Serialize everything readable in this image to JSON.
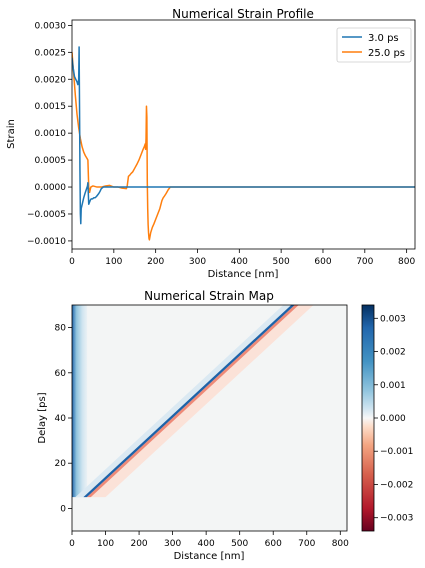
{
  "chart_data": [
    {
      "type": "line",
      "title": "Numerical Strain Profile",
      "xlabel": "Distance [nm]",
      "ylabel": "Strain",
      "xlim": [
        0,
        820
      ],
      "ylim": [
        -0.00115,
        0.0031
      ],
      "xticks": [
        0,
        100,
        200,
        300,
        400,
        500,
        600,
        700,
        800
      ],
      "yticks": [
        -0.001,
        -0.0005,
        0.0,
        0.0005,
        0.001,
        0.0015,
        0.002,
        0.0025,
        0.003
      ],
      "ytick_labels": [
        "−0.0010",
        "−0.0005",
        "0.0000",
        "0.0005",
        "0.0010",
        "0.0015",
        "0.0020",
        "0.0025",
        "0.0030"
      ],
      "legend_position": "top-right",
      "series": [
        {
          "name": "3.0 ps",
          "color": "#1f77b4",
          "x": [
            0,
            3,
            6,
            9,
            12,
            14,
            16,
            17,
            18,
            19,
            20,
            21,
            22,
            25,
            28,
            31,
            34,
            37,
            38,
            40,
            42,
            44,
            46,
            49,
            52,
            55,
            58,
            61,
            64,
            67,
            70,
            75,
            820
          ],
          "y": [
            0.0024,
            0.0022,
            0.00205,
            0.002,
            0.00195,
            0.0019,
            0.002,
            0.0026,
            0.0015,
            0.0003,
            -0.0005,
            -0.00068,
            -0.0004,
            -0.0003,
            -0.0002,
            -0.00012,
            -5e-05,
            2e-05,
            8e-05,
            -0.00032,
            -0.00028,
            -0.00024,
            -0.00022,
            -0.00022,
            -0.0002,
            -0.0002,
            -0.00018,
            -0.00015,
            -0.00012,
            -8e-05,
            -3e-05,
            0.0,
            0.0
          ]
        },
        {
          "name": "25.0 ps",
          "color": "#ff7f0e",
          "x": [
            0,
            4,
            8,
            12,
            16,
            20,
            24,
            28,
            32,
            36,
            38,
            40,
            42,
            45,
            50,
            60,
            70,
            80,
            90,
            100,
            110,
            120,
            130,
            132,
            135,
            138,
            141,
            145,
            150,
            155,
            160,
            165,
            170,
            173,
            175,
            176,
            177,
            178,
            179,
            180,
            181,
            182,
            183,
            184,
            185,
            188,
            192,
            196,
            200,
            205,
            210,
            215,
            218,
            220,
            225,
            230,
            235,
            240,
            820
          ],
          "y": [
            0.0025,
            0.0021,
            0.0017,
            0.00135,
            0.0011,
            0.0009,
            0.00075,
            0.00065,
            0.00058,
            0.00053,
            0.0005,
            0.0,
            -0.0001,
            0.0,
            2e-05,
            0.0,
            0.0,
            2e-05,
            3e-05,
            0.0,
            0.0,
            -2e-05,
            -3e-05,
            2e-05,
            0.0002,
            0.00022,
            0.00025,
            0.00028,
            0.00035,
            0.00042,
            0.0005,
            0.0006,
            0.0007,
            0.00075,
            0.0008,
            0.0007,
            0.0009,
            0.0015,
            0.0013,
            0.0001,
            -0.0004,
            -0.0007,
            -0.00085,
            -0.00095,
            -0.00098,
            -0.00085,
            -0.00075,
            -0.00068,
            -0.0006,
            -0.0005,
            -0.0004,
            -0.00025,
            -0.0002,
            -0.00018,
            -0.00012,
            -5e-05,
            0.0,
            0.0,
            0.0
          ]
        }
      ]
    },
    {
      "type": "heatmap",
      "title": "Numerical Strain Map",
      "xlabel": "Distance [nm]",
      "ylabel": "Delay [ps]",
      "xlim": [
        0,
        820
      ],
      "ylim": [
        -10,
        90
      ],
      "xticks": [
        0,
        100,
        200,
        300,
        400,
        500,
        600,
        700,
        800
      ],
      "yticks": [
        0,
        20,
        40,
        60,
        80
      ],
      "colormap": "RdBu",
      "clim": [
        -0.0034,
        0.0034
      ],
      "colorbar_ticks": [
        -0.003,
        -0.002,
        -0.001,
        0.0,
        0.001,
        0.002,
        0.003
      ],
      "colorbar_tick_labels": [
        "−0.003",
        "−0.002",
        "−0.001",
        "0.000",
        "0.001",
        "0.002",
        "0.003"
      ],
      "features": {
        "surface_layer_nm": [
          0,
          45
        ],
        "front_start": [
          40,
          5
        ],
        "front_end": [
          660,
          90
        ],
        "compressive_band_color": "#1e63a8",
        "tensile_band_color": "#ee8a78",
        "background_color": "#f3f5f5"
      }
    }
  ]
}
